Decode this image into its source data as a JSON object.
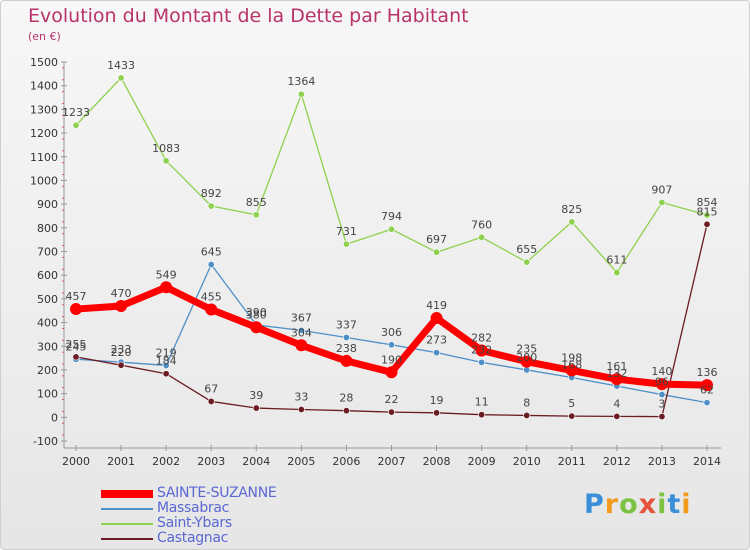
{
  "header": {
    "title": "Evolution du Montant de la Dette par Habitant",
    "subtitle": "(en €)"
  },
  "logo": {
    "text": "Proxiti"
  },
  "chart_data": {
    "type": "line",
    "title": "Evolution du Montant de la Dette par Habitant",
    "subtitle": "(en €)",
    "xlabel": "",
    "ylabel": "",
    "x": [
      "2000",
      "2001",
      "2002",
      "2003",
      "2004",
      "2005",
      "2006",
      "2007",
      "2008",
      "2009",
      "2010",
      "2011",
      "2012",
      "2013",
      "2014"
    ],
    "ylim": [
      -100,
      1500
    ],
    "yticks": [
      "-100",
      "0",
      "100",
      "200",
      "300",
      "400",
      "500",
      "600",
      "700",
      "800",
      "900",
      "1000",
      "1100",
      "1200",
      "1300",
      "1400",
      "1500"
    ],
    "grid": false,
    "legend_position": "bottom-left",
    "series": [
      {
        "name": "SAINTE-SUZANNE",
        "color": "#ff0000",
        "values": [
          457,
          470,
          549,
          455,
          380,
          304,
          238,
          190,
          419,
          282,
          235,
          198,
          161,
          140,
          136
        ],
        "labels": [
          "457",
          "470",
          "549",
          "455",
          "380",
          "304",
          "238",
          "190",
          "419",
          "282",
          "235",
          "198",
          "161",
          "140",
          "136"
        ]
      },
      {
        "name": "Massabrac",
        "color": "#4f8fc7",
        "values": [
          245,
          233,
          219,
          645,
          390,
          367,
          337,
          306,
          273,
          232,
          200,
          168,
          132,
          96,
          62
        ],
        "labels": [
          "245",
          "233",
          "219",
          "645",
          "390",
          "367",
          "337",
          "306",
          "273",
          "232",
          "200",
          "168",
          "132",
          "96",
          "62"
        ]
      },
      {
        "name": "Saint-Ybars",
        "color": "#8fd14f",
        "values": [
          1233,
          1433,
          1083,
          892,
          855,
          1364,
          731,
          794,
          697,
          760,
          655,
          825,
          611,
          907,
          854
        ],
        "labels": [
          "1233",
          "1433",
          "1083",
          "892",
          "855",
          "1364",
          "731",
          "794",
          "697",
          "760",
          "655",
          "825",
          "611",
          "907",
          "854"
        ]
      },
      {
        "name": "Castagnac",
        "color": "#6b1b22",
        "values": [
          255,
          220,
          184,
          67,
          39,
          33,
          28,
          22,
          19,
          11,
          8,
          5,
          4,
          3,
          815
        ],
        "labels": [
          "255",
          "220",
          "184",
          "67",
          "39",
          "33",
          "28",
          "22",
          "19",
          "11",
          "8",
          "5",
          "4",
          "3",
          "815"
        ]
      }
    ]
  }
}
